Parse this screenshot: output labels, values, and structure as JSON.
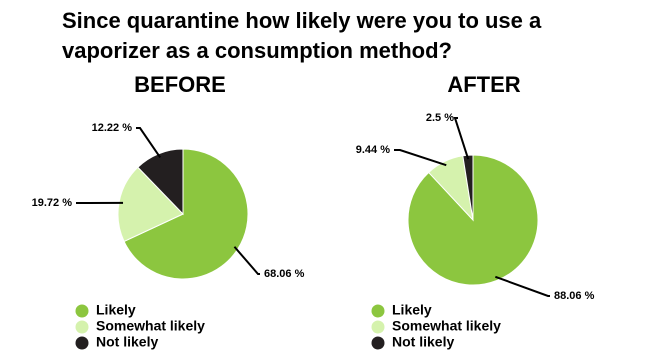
{
  "title": "Since quarantine how likely were you to use a vaporizer as a consumption method?",
  "chart_data": [
    {
      "type": "pie",
      "title": "BEFORE",
      "categories": [
        "Likely",
        "Somewhat likely",
        "Not likely"
      ],
      "values": [
        68.06,
        19.72,
        12.22
      ],
      "value_labels": [
        "68.06 %",
        "19.72 %",
        "12.22 %"
      ],
      "colors": [
        "#8cc63f",
        "#d5f2ad",
        "#231f20"
      ]
    },
    {
      "type": "pie",
      "title": "AFTER",
      "categories": [
        "Likely",
        "Somewhat likely",
        "Not likely"
      ],
      "values": [
        88.06,
        9.44,
        2.5
      ],
      "value_labels": [
        "88.06 %",
        "9.44 %",
        "2.5 %"
      ],
      "colors": [
        "#8cc63f",
        "#d5f2ad",
        "#231f20"
      ]
    }
  ]
}
